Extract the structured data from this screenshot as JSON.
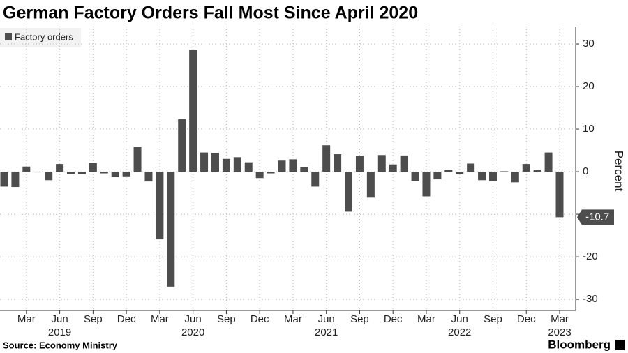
{
  "chart_data": {
    "type": "bar",
    "title": "German Factory Orders Fall Most Since April 2020",
    "source": "Source: Economy Ministry",
    "brand": "Bloomberg",
    "y_label": "Percent",
    "categories": [
      null,
      null,
      "Mar",
      null,
      null,
      "Jun",
      null,
      null,
      "Sep",
      null,
      null,
      "Dec",
      null,
      null,
      "Mar",
      null,
      null,
      "Jun",
      null,
      null,
      "Sep",
      null,
      null,
      "Dec",
      null,
      null,
      "Mar",
      null,
      null,
      "Jun",
      null,
      null,
      "Sep",
      null,
      null,
      "Dec",
      null,
      null,
      "Mar",
      null,
      null,
      "Jun",
      null,
      null,
      "Sep",
      null,
      null,
      "Dec",
      null,
      null,
      "Mar"
    ],
    "category_years": [
      null,
      null,
      null,
      null,
      null,
      "2019",
      null,
      null,
      null,
      null,
      null,
      null,
      null,
      null,
      null,
      null,
      null,
      "2020",
      null,
      null,
      null,
      null,
      null,
      null,
      null,
      null,
      null,
      null,
      null,
      "2021",
      null,
      null,
      null,
      null,
      null,
      null,
      null,
      null,
      null,
      null,
      null,
      "2022",
      null,
      null,
      null,
      null,
      null,
      null,
      null,
      null,
      "2023"
    ],
    "series": [
      {
        "name": "Factory orders",
        "color": "#4d4d4d",
        "values": [
          -3.5,
          -3.6,
          1.2,
          -0.1,
          -2.0,
          1.8,
          -0.5,
          -0.6,
          2.0,
          -0.4,
          -1.3,
          -1.1,
          5.8,
          -2.3,
          -15.9,
          -27.0,
          12.3,
          28.6,
          4.5,
          4.4,
          3.0,
          3.4,
          2.2,
          -1.5,
          -0.4,
          2.6,
          2.9,
          1.1,
          -3.5,
          6.2,
          4.1,
          -9.4,
          3.7,
          -6.1,
          3.9,
          1.7,
          3.8,
          -2.2,
          -5.8,
          -1.8,
          0.5,
          -0.6,
          1.9,
          -2.0,
          -2.2,
          0.1,
          -2.5,
          1.8,
          0.5,
          4.5,
          -10.7
        ]
      }
    ],
    "ylim": [
      -32.6,
      34.1
    ],
    "yticks": [
      -30,
      -20,
      -10,
      0,
      10,
      20,
      30
    ],
    "grid": true,
    "legend": "top-left"
  }
}
